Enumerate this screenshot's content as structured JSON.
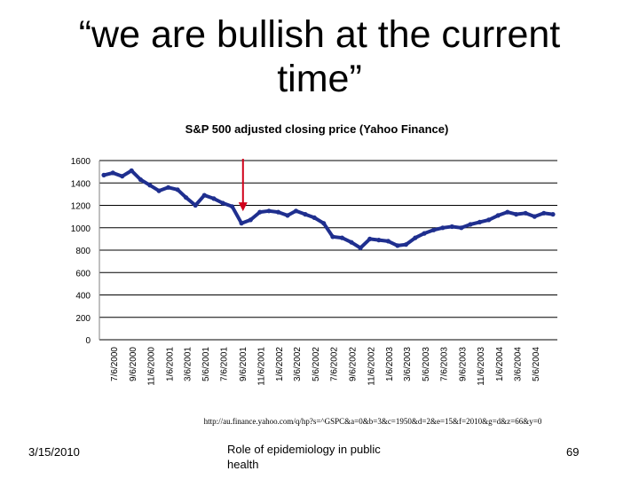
{
  "slide": {
    "title_line1": "“we are bullish at the current",
    "title_line2": "time”",
    "source": "http://au.finance.yahoo.com/q/hp?s=^GSPC&a=0&b=3&c=1950&d=2&e=15&f=2010&g=d&z=66&y=0",
    "footer_date": "3/15/2010",
    "footer_center": "Role of epidemiology in public health",
    "page_number": "69"
  },
  "colors": {
    "series": "#1f2f8f",
    "arrow": "#d0021b",
    "gridline": "#000000"
  },
  "chart_data": {
    "type": "line",
    "title": "S&P 500 adjusted closing price (Yahoo Finance)",
    "xlabel": "",
    "ylabel": "",
    "ylim": [
      0,
      1600
    ],
    "yticks": [
      0,
      200,
      400,
      600,
      800,
      1000,
      1200,
      1400,
      1600
    ],
    "grid": "horizontal",
    "legend": "none",
    "xticks": [
      "7/6/2000",
      "9/6/2000",
      "11/6/2000",
      "1/6/2001",
      "3/6/2001",
      "5/6/2001",
      "7/6/2001",
      "9/6/2001",
      "11/6/2001",
      "1/6/2002",
      "3/6/2002",
      "5/6/2002",
      "7/6/2002",
      "9/6/2002",
      "11/6/2002",
      "1/6/2003",
      "3/6/2003",
      "5/6/2003",
      "7/6/2003",
      "9/6/2003",
      "11/6/2003",
      "1/6/2004",
      "3/6/2004",
      "5/6/2004"
    ],
    "annotation": {
      "type": "arrow",
      "x": "9/6/2001",
      "y": 1100
    },
    "series": [
      {
        "x": [
          "6/1/2000",
          "7/1/2000",
          "8/1/2000",
          "9/1/2000",
          "10/1/2000",
          "11/1/2000",
          "12/1/2000",
          "1/1/2001",
          "2/1/2001",
          "3/1/2001",
          "4/1/2001",
          "5/1/2001",
          "6/1/2001",
          "7/1/2001",
          "8/1/2001",
          "9/1/2001",
          "10/1/2001",
          "11/1/2001",
          "12/1/2001",
          "1/1/2002",
          "2/1/2002",
          "3/1/2002",
          "4/1/2002",
          "5/1/2002",
          "6/1/2002",
          "7/1/2002",
          "8/1/2002",
          "9/1/2002",
          "10/1/2002",
          "11/1/2002",
          "12/1/2002",
          "1/1/2003",
          "2/1/2003",
          "3/1/2003",
          "4/1/2003",
          "5/1/2003",
          "6/1/2003",
          "7/1/2003",
          "8/1/2003",
          "9/1/2003",
          "10/1/2003",
          "11/1/2003",
          "12/1/2003",
          "1/1/2004",
          "2/1/2004",
          "3/1/2004",
          "4/1/2004",
          "5/1/2004",
          "6/1/2004",
          "7/1/2004"
        ],
        "values": [
          1470,
          1490,
          1460,
          1510,
          1430,
          1380,
          1330,
          1360,
          1340,
          1270,
          1200,
          1290,
          1260,
          1220,
          1190,
          1040,
          1070,
          1140,
          1150,
          1140,
          1110,
          1150,
          1120,
          1090,
          1040,
          920,
          910,
          870,
          820,
          900,
          890,
          880,
          840,
          850,
          910,
          950,
          980,
          1000,
          1010,
          1000,
          1030,
          1050,
          1070,
          1110,
          1140,
          1120,
          1130,
          1100,
          1130,
          1120
        ]
      }
    ]
  }
}
